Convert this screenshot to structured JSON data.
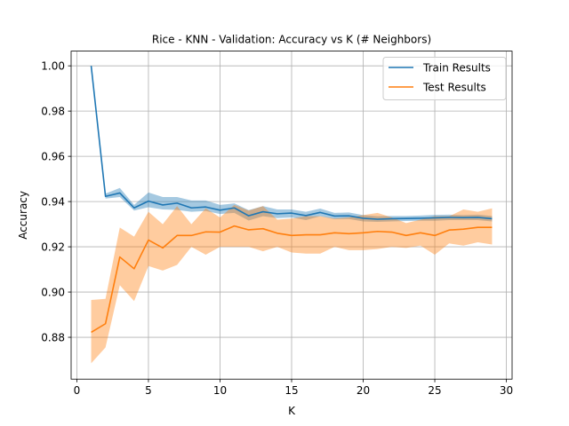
{
  "chart_data": {
    "type": "line",
    "title": "Rice - KNN - Validation: Accuracy vs K (# Neighbors)",
    "xlabel": "K",
    "ylabel": "Accuracy",
    "xlim": [
      -0.4,
      30.4
    ],
    "ylim": [
      0.8615,
      1.0065
    ],
    "xticks": [
      0,
      5,
      10,
      15,
      20,
      25,
      30
    ],
    "yticks": [
      0.88,
      0.9,
      0.92,
      0.94,
      0.96,
      0.98,
      1.0
    ],
    "grid": true,
    "legend_position": "top-right",
    "x": [
      1,
      2,
      3,
      4,
      5,
      6,
      7,
      8,
      9,
      10,
      11,
      12,
      13,
      14,
      15,
      16,
      17,
      18,
      19,
      20,
      21,
      22,
      23,
      24,
      25,
      26,
      27,
      28,
      29
    ],
    "series": [
      {
        "name": "Train Results",
        "color": "#1f77b4",
        "values": [
          1.0,
          0.9423,
          0.9438,
          0.9372,
          0.9402,
          0.9385,
          0.9393,
          0.9372,
          0.9376,
          0.9362,
          0.9372,
          0.9337,
          0.9355,
          0.9346,
          0.9349,
          0.9338,
          0.9352,
          0.9336,
          0.9337,
          0.9326,
          0.9322,
          0.9324,
          0.9325,
          0.9326,
          0.9328,
          0.933,
          0.9329,
          0.933,
          0.9324
        ],
        "lower": [
          1.0,
          0.9413,
          0.942,
          0.936,
          0.9375,
          0.9365,
          0.9363,
          0.9355,
          0.9358,
          0.9345,
          0.935,
          0.9316,
          0.9335,
          0.9327,
          0.933,
          0.9318,
          0.9335,
          0.9322,
          0.9323,
          0.9312,
          0.931,
          0.9312,
          0.9314,
          0.9315,
          0.9315,
          0.9318,
          0.9318,
          0.9318,
          0.9312
        ],
        "upper": [
          1.0,
          0.9435,
          0.946,
          0.9385,
          0.944,
          0.942,
          0.942,
          0.9405,
          0.9405,
          0.9385,
          0.9392,
          0.9362,
          0.938,
          0.9365,
          0.9365,
          0.9355,
          0.9369,
          0.935,
          0.9352,
          0.934,
          0.9335,
          0.9336,
          0.9336,
          0.9338,
          0.9341,
          0.9342,
          0.934,
          0.9342,
          0.9336
        ]
      },
      {
        "name": "Test Results",
        "color": "#ff7f0e",
        "values": [
          0.8822,
          0.886,
          0.9155,
          0.9103,
          0.923,
          0.9195,
          0.925,
          0.925,
          0.9266,
          0.9265,
          0.9292,
          0.9275,
          0.928,
          0.926,
          0.925,
          0.9253,
          0.9253,
          0.9262,
          0.9258,
          0.9262,
          0.9268,
          0.9265,
          0.925,
          0.9262,
          0.925,
          0.9274,
          0.9278,
          0.9286,
          0.9286
        ],
        "lower": [
          0.8685,
          0.8755,
          0.903,
          0.896,
          0.9115,
          0.9095,
          0.912,
          0.92,
          0.9165,
          0.92,
          0.92,
          0.92,
          0.918,
          0.92,
          0.9175,
          0.917,
          0.917,
          0.92,
          0.9185,
          0.9185,
          0.919,
          0.92,
          0.9195,
          0.9205,
          0.9165,
          0.9215,
          0.9205,
          0.922,
          0.921
        ],
        "upper": [
          0.8965,
          0.897,
          0.9285,
          0.9245,
          0.9355,
          0.93,
          0.938,
          0.93,
          0.937,
          0.933,
          0.9385,
          0.936,
          0.938,
          0.932,
          0.9325,
          0.9335,
          0.9335,
          0.9325,
          0.933,
          0.934,
          0.935,
          0.933,
          0.9305,
          0.932,
          0.9335,
          0.9335,
          0.9365,
          0.9355,
          0.937
        ]
      }
    ]
  }
}
